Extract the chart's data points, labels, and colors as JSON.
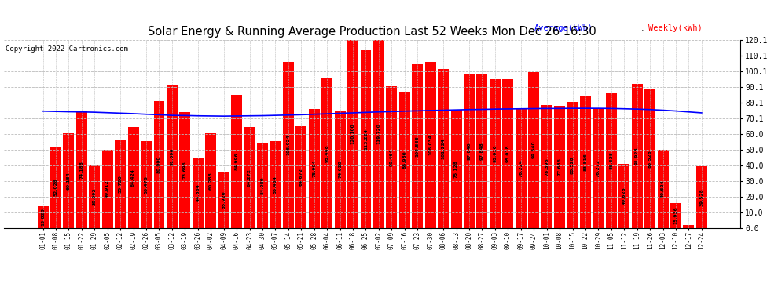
{
  "title": "Solar Energy & Running Average Production Last 52 Weeks Mon Dec 26 16:30",
  "copyright": "Copyright 2022 Cartronics.com",
  "legend_avg": "Average(kWh)",
  "legend_weekly": "Weekly(kWh)",
  "bar_color": "#ff0000",
  "avg_line_color": "#0000ff",
  "background_color": "#ffffff",
  "grid_color": "#bbbbbb",
  "ylim": [
    0,
    120.1
  ],
  "yticks": [
    0.0,
    10.0,
    20.0,
    30.0,
    40.0,
    50.0,
    60.0,
    70.1,
    80.1,
    90.1,
    100.1,
    110.1,
    120.1
  ],
  "categories": [
    "01-01",
    "01-08",
    "01-15",
    "01-22",
    "01-29",
    "02-05",
    "02-12",
    "02-19",
    "02-26",
    "03-05",
    "03-12",
    "03-19",
    "03-26",
    "04-02",
    "04-09",
    "04-16",
    "04-23",
    "04-30",
    "05-07",
    "05-14",
    "05-21",
    "05-28",
    "06-04",
    "06-11",
    "06-18",
    "06-25",
    "07-02",
    "07-09",
    "07-16",
    "07-23",
    "07-30",
    "08-06",
    "08-13",
    "08-20",
    "08-27",
    "09-03",
    "09-10",
    "09-17",
    "09-24",
    "10-01",
    "10-08",
    "10-15",
    "10-22",
    "10-29",
    "11-05",
    "11-12",
    "11-19",
    "11-26",
    "12-03",
    "12-10",
    "12-17",
    "12-24"
  ],
  "weekly_values": [
    13.828,
    52.028,
    60.184,
    74.188,
    39.992,
    49.912,
    55.72,
    64.424,
    55.476,
    80.9,
    91.096,
    73.696,
    44.864,
    60.288,
    35.92,
    84.996,
    64.272,
    54.08,
    55.464,
    106.024,
    64.672,
    75.904,
    95.448,
    74.62,
    120.1,
    113.224,
    119.72,
    90.464,
    86.98,
    104.556,
    106.034,
    101.224,
    75.128,
    97.84,
    97.848,
    95.016,
    95.018,
    76.224,
    99.54,
    78.395,
    77.636,
    80.528,
    83.816,
    76.272,
    86.628,
    40.628,
    91.928,
    88.528,
    49.624,
    15.936,
    1.928,
    39.528
  ],
  "avg_values": [
    74.5,
    74.3,
    74.1,
    74.0,
    73.8,
    73.5,
    73.2,
    72.9,
    72.5,
    72.2,
    71.8,
    71.7,
    71.5,
    71.4,
    71.3,
    71.4,
    71.5,
    71.6,
    71.8,
    72.0,
    72.2,
    72.5,
    72.8,
    73.1,
    73.4,
    73.7,
    74.0,
    74.2,
    74.5,
    74.7,
    74.9,
    75.1,
    75.3,
    75.5,
    75.6,
    75.8,
    75.9,
    76.0,
    76.1,
    76.2,
    76.2,
    76.3,
    76.3,
    76.3,
    76.2,
    76.0,
    75.8,
    75.5,
    75.1,
    74.6,
    74.0,
    73.4
  ]
}
